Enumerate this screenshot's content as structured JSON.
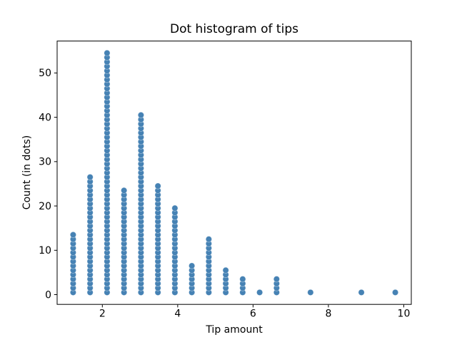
{
  "chart_data": {
    "type": "scatter",
    "subtype": "dot-histogram",
    "title": "Dot histogram of tips",
    "xlabel": "Tip amount",
    "ylabel": "Count (in dots)",
    "x": [
      1.225,
      1.675,
      2.125,
      2.575,
      3.025,
      3.475,
      3.925,
      4.375,
      4.825,
      5.275,
      5.725,
      6.175,
      6.625,
      7.525,
      8.875,
      9.775
    ],
    "counts": [
      14,
      27,
      55,
      24,
      41,
      25,
      20,
      7,
      13,
      6,
      4,
      1,
      4,
      1,
      1,
      1
    ],
    "total_dots": 244,
    "bin_width": 0.45,
    "dot_stack_offset": 0.5,
    "xticks": [
      2,
      4,
      6,
      8,
      10
    ],
    "yticks": [
      0,
      10,
      20,
      30,
      40,
      50
    ],
    "xlim": [
      0.8,
      10.2
    ],
    "ylim": [
      -2.2,
      57.2
    ],
    "dot_color": "#4682B4",
    "axis_color": "#000000",
    "text_color": "#000000",
    "background": "#ffffff",
    "grid": false,
    "legend": "none"
  }
}
